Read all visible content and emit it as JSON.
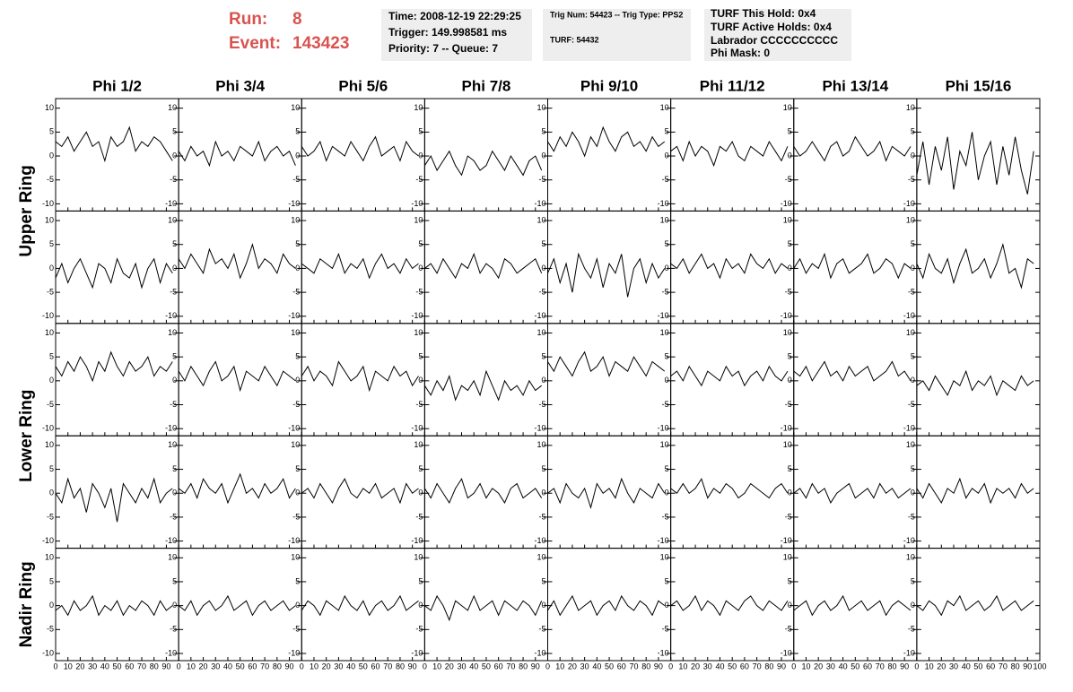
{
  "header": {
    "run_label": "Run:",
    "run": "8",
    "event_label": "Event:",
    "event": "143423",
    "boxes": [
      [
        "Time: 2008-12-19 22:29:25",
        "Trigger: 149.998581 ms",
        "Priority: 7 -- Queue: 7"
      ],
      [
        "Trig Num: 54423 -- Trig Type: PPS2",
        "TURF: 54432"
      ],
      [
        "TURF This Hold: 0x4",
        "TURF Active Holds: 0x4",
        "Labrador CCCCCCCCCC",
        "Phi Mask: 0"
      ]
    ]
  },
  "axes": {
    "xlim": [
      0,
      100
    ],
    "ylim": [
      -11.5,
      12
    ],
    "xticks": [
      0,
      10,
      20,
      30,
      40,
      50,
      60,
      70,
      80,
      90,
      100
    ],
    "yticks": [
      -10,
      -5,
      0,
      5,
      10
    ],
    "x": [
      0,
      5,
      10,
      15,
      20,
      25,
      30,
      35,
      40,
      45,
      50,
      55,
      60,
      65,
      70,
      75,
      80,
      85,
      90,
      95
    ]
  },
  "columns": [
    "Phi 1/2",
    "Phi 3/4",
    "Phi 5/6",
    "Phi 7/8",
    "Phi 9/10",
    "Phi 11/12",
    "Phi 13/14",
    "Phi 15/16"
  ],
  "rings": [
    {
      "label": "Upper Ring",
      "rows": [
        [
          [
            3,
            2,
            4,
            1,
            3,
            5,
            2,
            3,
            -1,
            4,
            2,
            3,
            6,
            1,
            3,
            2,
            4,
            3,
            1,
            -1
          ],
          [
            1,
            -1,
            2,
            0,
            1,
            -2,
            3,
            0,
            1,
            -1,
            2,
            1,
            0,
            3,
            -1,
            1,
            2,
            0,
            1,
            -2
          ],
          [
            2,
            0,
            1,
            3,
            -1,
            2,
            1,
            0,
            3,
            1,
            -1,
            2,
            4,
            0,
            1,
            2,
            -1,
            3,
            1,
            0
          ],
          [
            -2,
            0,
            -3,
            -1,
            1,
            -2,
            -4,
            0,
            -1,
            -3,
            -2,
            1,
            -1,
            -3,
            0,
            -2,
            -4,
            -1,
            0,
            -3
          ],
          [
            3,
            1,
            4,
            2,
            5,
            3,
            0,
            4,
            2,
            6,
            3,
            1,
            4,
            5,
            2,
            3,
            1,
            4,
            2,
            3
          ],
          [
            1,
            2,
            -1,
            3,
            0,
            2,
            1,
            -2,
            2,
            1,
            3,
            0,
            -1,
            2,
            1,
            0,
            3,
            1,
            -1,
            2
          ],
          [
            2,
            0,
            1,
            3,
            1,
            -1,
            2,
            3,
            0,
            1,
            4,
            2,
            0,
            1,
            3,
            -1,
            2,
            1,
            0,
            2
          ],
          [
            -4,
            3,
            -6,
            2,
            -3,
            4,
            -7,
            1,
            -2,
            5,
            -5,
            0,
            3,
            -6,
            2,
            -4,
            4,
            -3,
            -8,
            1
          ]
        ],
        [
          [
            -2,
            1,
            -3,
            0,
            2,
            -1,
            -4,
            1,
            0,
            -3,
            2,
            -1,
            -2,
            1,
            -4,
            0,
            2,
            -3,
            1,
            -1
          ],
          [
            2,
            0,
            3,
            1,
            -1,
            4,
            1,
            2,
            0,
            3,
            -2,
            1,
            5,
            0,
            2,
            1,
            -1,
            3,
            1,
            0
          ],
          [
            1,
            0,
            -1,
            2,
            1,
            0,
            3,
            -1,
            1,
            0,
            2,
            -2,
            1,
            3,
            0,
            1,
            -1,
            2,
            0,
            1
          ],
          [
            0,
            1,
            -1,
            2,
            0,
            -2,
            1,
            0,
            3,
            -1,
            1,
            0,
            -2,
            2,
            1,
            -1,
            0,
            1,
            2,
            -1
          ],
          [
            -1,
            2,
            -3,
            1,
            -5,
            3,
            0,
            -2,
            2,
            -4,
            1,
            -1,
            3,
            -6,
            0,
            2,
            -3,
            1,
            -2,
            0
          ],
          [
            1,
            0,
            2,
            -1,
            1,
            3,
            0,
            1,
            -2,
            2,
            0,
            1,
            -1,
            3,
            1,
            0,
            2,
            -1,
            1,
            0
          ],
          [
            0,
            2,
            -1,
            1,
            0,
            3,
            -2,
            1,
            2,
            -1,
            0,
            1,
            3,
            -1,
            0,
            2,
            1,
            -2,
            1,
            0
          ],
          [
            1,
            -2,
            3,
            0,
            -1,
            2,
            -3,
            1,
            4,
            -1,
            0,
            2,
            -2,
            1,
            5,
            -1,
            0,
            -4,
            2,
            1
          ]
        ]
      ]
    },
    {
      "label": "Lower Ring",
      "rows": [
        [
          [
            3,
            1,
            4,
            2,
            5,
            3,
            0,
            4,
            2,
            6,
            3,
            1,
            4,
            2,
            3,
            5,
            1,
            3,
            2,
            4
          ],
          [
            2,
            0,
            3,
            1,
            -1,
            2,
            4,
            0,
            1,
            3,
            -2,
            2,
            1,
            0,
            3,
            1,
            -1,
            2,
            1,
            0
          ],
          [
            1,
            3,
            0,
            2,
            1,
            -1,
            4,
            2,
            0,
            1,
            3,
            -2,
            2,
            1,
            0,
            3,
            1,
            2,
            -1,
            1
          ],
          [
            -1,
            -3,
            0,
            -2,
            1,
            -4,
            -1,
            -2,
            0,
            -3,
            2,
            -1,
            -4,
            0,
            -2,
            -1,
            -3,
            0,
            -2,
            -1
          ],
          [
            4,
            2,
            5,
            3,
            1,
            4,
            6,
            2,
            3,
            5,
            1,
            4,
            3,
            2,
            5,
            3,
            1,
            4,
            3,
            2
          ],
          [
            1,
            2,
            0,
            3,
            1,
            -1,
            2,
            1,
            0,
            3,
            1,
            2,
            -1,
            1,
            2,
            0,
            3,
            1,
            0,
            2
          ],
          [
            2,
            1,
            3,
            0,
            2,
            4,
            1,
            2,
            0,
            3,
            1,
            2,
            3,
            0,
            1,
            2,
            4,
            1,
            2,
            0
          ],
          [
            -1,
            0,
            -2,
            1,
            -1,
            -3,
            0,
            -1,
            2,
            -2,
            0,
            -1,
            1,
            -3,
            0,
            -1,
            -2,
            1,
            -1,
            0
          ]
        ],
        [
          [
            0,
            -2,
            3,
            -1,
            1,
            -4,
            2,
            0,
            -3,
            1,
            -6,
            2,
            0,
            -2,
            1,
            -1,
            3,
            -2,
            0,
            1
          ],
          [
            1,
            0,
            2,
            -1,
            3,
            1,
            0,
            2,
            -2,
            1,
            4,
            0,
            1,
            -1,
            2,
            0,
            1,
            3,
            -1,
            1
          ],
          [
            0,
            1,
            -1,
            2,
            0,
            -2,
            1,
            3,
            0,
            -1,
            1,
            0,
            2,
            -1,
            0,
            1,
            -2,
            2,
            0,
            1
          ],
          [
            1,
            -1,
            2,
            0,
            -2,
            1,
            3,
            -1,
            0,
            2,
            -1,
            1,
            0,
            -2,
            1,
            2,
            -1,
            0,
            1,
            -1
          ],
          [
            0,
            1,
            -2,
            2,
            0,
            -1,
            1,
            -3,
            2,
            0,
            1,
            -1,
            3,
            0,
            -2,
            1,
            0,
            -1,
            2,
            0
          ],
          [
            1,
            0,
            2,
            0,
            1,
            3,
            -1,
            1,
            0,
            2,
            1,
            -1,
            0,
            2,
            1,
            0,
            -1,
            1,
            2,
            0
          ],
          [
            0,
            1,
            -1,
            2,
            0,
            1,
            -2,
            0,
            1,
            2,
            -1,
            0,
            1,
            -1,
            2,
            0,
            1,
            -1,
            0,
            1
          ],
          [
            1,
            -1,
            2,
            0,
            -2,
            1,
            0,
            3,
            -1,
            1,
            0,
            2,
            -2,
            1,
            0,
            1,
            -1,
            2,
            0,
            1
          ]
        ]
      ]
    },
    {
      "label": "Nadir Ring",
      "rows": [
        [
          [
            -1,
            0,
            -2,
            1,
            -1,
            0,
            2,
            -2,
            0,
            -1,
            1,
            -2,
            0,
            -1,
            1,
            0,
            -2,
            1,
            -1,
            0
          ],
          [
            0,
            -1,
            1,
            -2,
            0,
            1,
            -1,
            0,
            2,
            -1,
            0,
            1,
            -2,
            0,
            1,
            -1,
            0,
            1,
            -1,
            0
          ],
          [
            -1,
            1,
            0,
            -2,
            1,
            0,
            -1,
            2,
            0,
            -1,
            1,
            -2,
            0,
            1,
            -1,
            0,
            2,
            -1,
            0,
            1
          ],
          [
            0,
            -1,
            2,
            0,
            -3,
            1,
            0,
            -1,
            2,
            -1,
            0,
            1,
            -2,
            1,
            0,
            -1,
            1,
            0,
            -2,
            1
          ],
          [
            -1,
            1,
            -2,
            0,
            2,
            -1,
            0,
            1,
            -2,
            0,
            1,
            -1,
            2,
            0,
            -1,
            1,
            0,
            -2,
            1,
            0
          ],
          [
            0,
            1,
            -1,
            0,
            2,
            -1,
            1,
            0,
            -2,
            1,
            0,
            -1,
            1,
            2,
            0,
            -1,
            1,
            0,
            -1,
            1
          ],
          [
            -1,
            0,
            1,
            -2,
            0,
            1,
            -1,
            0,
            2,
            -1,
            0,
            1,
            -1,
            0,
            1,
            -2,
            0,
            1,
            0,
            -1
          ],
          [
            0,
            -1,
            1,
            0,
            -2,
            1,
            0,
            2,
            -1,
            0,
            1,
            -1,
            0,
            2,
            -1,
            0,
            1,
            -1,
            0,
            1
          ]
        ]
      ]
    }
  ]
}
